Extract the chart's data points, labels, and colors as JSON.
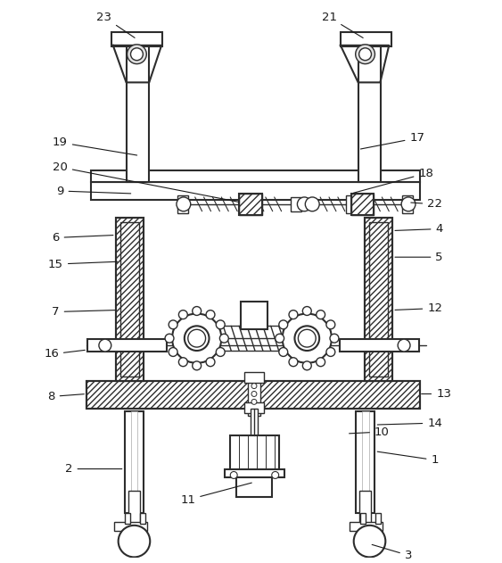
{
  "bg_color": "#ffffff",
  "line_color": "#2d2d2d",
  "label_color": "#1a1a1a",
  "figsize": [
    5.63,
    6.31
  ],
  "dpi": 100
}
